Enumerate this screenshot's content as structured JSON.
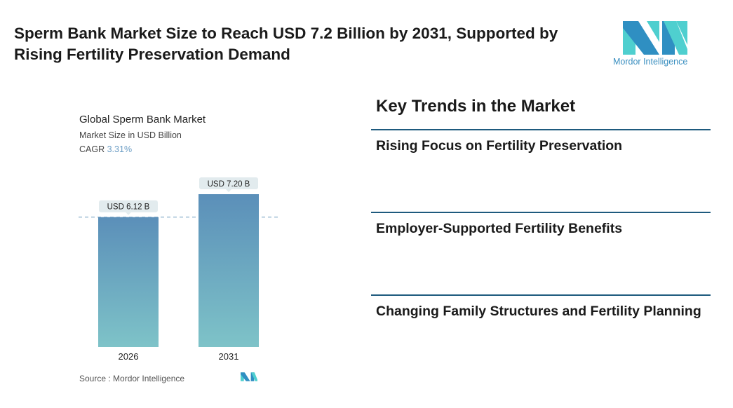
{
  "title": "Sperm Bank Market Size to Reach USD 7.2 Billion by 2031, Supported by Rising Fertility Preservation Demand",
  "logo": {
    "text": "Mordor Intelligence"
  },
  "chart_data": {
    "type": "bar",
    "title": "Global Sperm Bank Market",
    "subtitle": "Market Size in USD Billion",
    "cagr_label": "CAGR",
    "cagr_value": "3.31%",
    "categories": [
      "2026",
      "2031"
    ],
    "values": [
      6.12,
      7.2
    ],
    "data_labels": [
      "USD 6.12 B",
      "USD 7.20 B"
    ],
    "ylim": [
      0,
      7.2
    ],
    "grid": false,
    "reference_line": 6.12,
    "colors": {
      "bar_top": "#5b8fb9",
      "bar_bottom": "#7ec3c8",
      "label_bg": "#e2ebee",
      "dash": "#6f9ec0"
    }
  },
  "source": "Source :  Mordor Intelligence",
  "trends": {
    "heading": "Key Trends in the Market",
    "items": [
      "Rising Focus on Fertility Preservation",
      "Employer-Supported Fertility Benefits",
      "Changing Family Structures and Fertility Planning"
    ]
  }
}
